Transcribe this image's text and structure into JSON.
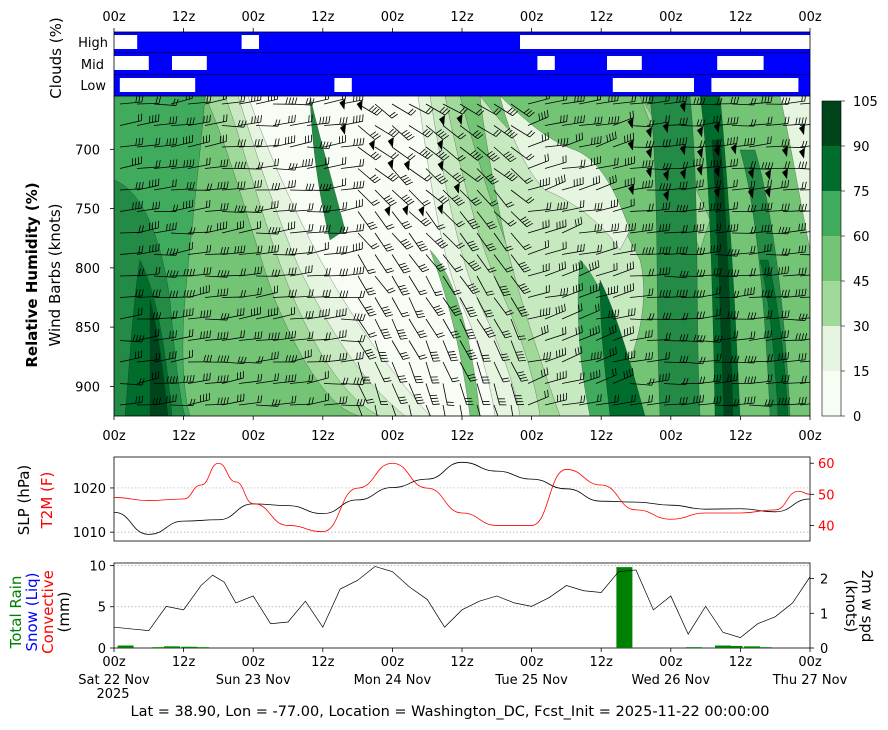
{
  "footer": "Lat = 38.90, Lon = -77.00, Location = Washington_DC, Fcst_Init = 2025-11-22 00:00:00",
  "time_ticks": [
    "00z",
    "12z",
    "00z",
    "12z",
    "00z",
    "12z",
    "00z",
    "12z",
    "00z",
    "12z",
    "00z"
  ],
  "date_labels": [
    "Sat 22 Nov",
    "Sun 23 Nov",
    "Mon 24 Nov",
    "Tue 25 Nov",
    "Wed 26 Nov",
    "Thu 27 Nov"
  ],
  "year_label": "2025",
  "colors": {
    "cloud_bg": "#0000ff",
    "cloud_fill": "#ffffff",
    "slp_line": "#000000",
    "t2m_line": "#ff0000",
    "rain_bar": "#008000",
    "greens": [
      "#f7fcf5",
      "#e5f5e0",
      "#c7e9c0",
      "#a1d99b",
      "#74c476",
      "#41ab5d",
      "#238b45",
      "#006d2c",
      "#00441b"
    ]
  },
  "chart_data": [
    {
      "type": "heatmap",
      "name": "clouds",
      "ylabel": "Clouds (%)",
      "rows": [
        "High",
        "Mid",
        "Low"
      ],
      "x_hours": [
        0,
        120
      ],
      "segments": {
        "High": [
          [
            0,
            4
          ],
          [
            22,
            25
          ],
          [
            70,
            120
          ]
        ],
        "Mid": [
          [
            0,
            6
          ],
          [
            10,
            16
          ],
          [
            73,
            76
          ],
          [
            85,
            91
          ],
          [
            104,
            112
          ]
        ],
        "Low": [
          [
            1,
            14
          ],
          [
            38,
            41
          ],
          [
            86,
            100
          ],
          [
            103,
            118
          ]
        ]
      }
    },
    {
      "type": "heatmap",
      "name": "relative_humidity",
      "ylabel": "Relative Humidity (%)",
      "ylabel2": "Wind Barbs (knots)",
      "y_ticks": [
        700,
        750,
        800,
        850,
        900
      ],
      "ylim": [
        925,
        655
      ],
      "colorbar_ticks": [
        0,
        15,
        30,
        45,
        60,
        75,
        90,
        105
      ],
      "colorbar_levels": [
        0,
        15,
        30,
        45,
        60,
        75,
        90,
        105
      ]
    },
    {
      "type": "line",
      "name": "slp_t2m",
      "ylabel_left": "SLP (hPa)",
      "ylabel_right": "T2M (F)",
      "left_ticks": [
        1010,
        1020
      ],
      "left_ylim": [
        1008,
        1027
      ],
      "right_ticks": [
        40,
        50,
        60
      ],
      "right_ylim": [
        35,
        62
      ],
      "series": [
        {
          "name": "SLP",
          "axis": "left",
          "x": [
            0,
            6,
            12,
            18,
            24,
            30,
            36,
            42,
            48,
            54,
            60,
            66,
            72,
            78,
            84,
            90,
            96,
            102,
            108,
            114,
            120
          ],
          "values": [
            1014.5,
            1009.5,
            1012.5,
            1012.8,
            1016.4,
            1016.0,
            1014.2,
            1017.3,
            1020.1,
            1022.0,
            1025.8,
            1023.8,
            1022.0,
            1019.8,
            1017.0,
            1016.8,
            1016.1,
            1015.2,
            1015.3,
            1014.6,
            1017.5
          ]
        },
        {
          "name": "T2M",
          "axis": "right",
          "x": [
            0,
            6,
            12,
            15,
            18,
            21,
            24,
            30,
            36,
            42,
            48,
            54,
            60,
            66,
            72,
            78,
            84,
            90,
            96,
            102,
            108,
            114,
            118,
            120
          ],
          "values": [
            49,
            48,
            48.5,
            53,
            60,
            54,
            47,
            40,
            38,
            52,
            60,
            52,
            44,
            40,
            40,
            58,
            53,
            45,
            42,
            44,
            44,
            45,
            51,
            50
          ]
        }
      ]
    },
    {
      "type": "bar",
      "name": "precip_wind",
      "ylabel_left": [
        "Total Rain",
        "Snow (Liq)",
        "Convective",
        "(mm)"
      ],
      "ylabel_right": [
        "2m w spd",
        "(knots)"
      ],
      "left_ticks": [
        0,
        5,
        10
      ],
      "left_ylim": [
        0,
        10.3
      ],
      "right_ticks": [
        0,
        1,
        2
      ],
      "right_ylim": [
        0,
        2.45
      ],
      "bars": {
        "x": [
          2,
          8,
          10,
          13,
          15,
          88,
          100,
          105,
          107,
          110,
          112
        ],
        "values": [
          0.3,
          0.1,
          0.2,
          0.15,
          0.1,
          9.8,
          0.1,
          0.3,
          0.25,
          0.2,
          0.1
        ]
      },
      "wind": {
        "x": [
          0,
          3,
          6,
          9,
          12,
          15,
          17,
          19,
          21,
          24,
          27,
          30,
          33,
          36,
          39,
          42,
          45,
          48,
          51,
          54,
          57,
          60,
          63,
          66,
          69,
          72,
          75,
          78,
          81,
          84,
          87,
          90,
          93,
          96,
          99,
          102,
          105,
          108,
          111,
          114,
          117,
          120
        ],
        "values": [
          0.6,
          0.55,
          0.5,
          1.2,
          1.1,
          1.8,
          2.1,
          1.9,
          1.3,
          1.5,
          0.7,
          0.75,
          1.35,
          0.6,
          1.7,
          1.95,
          2.35,
          2.2,
          1.75,
          1.4,
          0.6,
          1.1,
          1.35,
          1.5,
          1.3,
          1.2,
          1.45,
          1.8,
          1.65,
          1.6,
          2.2,
          2.25,
          1.1,
          1.5,
          0.4,
          1.2,
          0.45,
          0.3,
          0.7,
          0.9,
          1.3,
          2.05
        ]
      }
    }
  ]
}
